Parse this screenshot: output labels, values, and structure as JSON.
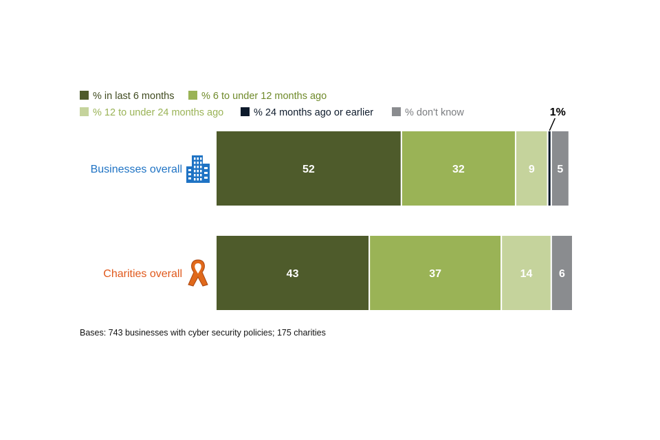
{
  "chart_data": {
    "type": "bar",
    "orientation": "horizontal",
    "stacked": true,
    "title": "",
    "xlabel": "",
    "ylabel": "",
    "xlim": [
      0,
      100
    ],
    "grid": false,
    "legend_position": "top",
    "categories": [
      "Businesses overall",
      "Charities overall"
    ],
    "category_colors": [
      "#1f73c4",
      "#e0581b"
    ],
    "category_icons": [
      "office-building-icon",
      "charity-ribbon-icon"
    ],
    "series": [
      {
        "name": "% in last 6 months",
        "color": "#4e5b2b",
        "legend_text_color": "#3f4a1f",
        "label_color": "#ffffff",
        "values": [
          52,
          43
        ]
      },
      {
        "name": "% 6 to under 12 months ago",
        "color": "#9ab356",
        "legend_text_color": "#6f8a2a",
        "label_color": "#ffffff",
        "values": [
          32,
          37
        ]
      },
      {
        "name": "% 12 to under 24 months ago",
        "color": "#c5d39c",
        "legend_text_color": "#9ab356",
        "label_color": "#ffffff",
        "values": [
          9,
          14
        ]
      },
      {
        "name": "% 24 months ago or earlier",
        "color": "#0d1a2b",
        "legend_text_color": "#0d1a2b",
        "label_color": "#ffffff",
        "values": [
          1,
          0
        ]
      },
      {
        "name": "% don't know",
        "color": "#8a8c8f",
        "legend_text_color": "#7b7d80",
        "label_color": "#ffffff",
        "values": [
          5,
          6
        ]
      }
    ],
    "data_labels": [
      [
        "52",
        "32",
        "9",
        "",
        "5"
      ],
      [
        "43",
        "37",
        "14",
        "",
        "6"
      ]
    ],
    "annotations": [
      {
        "text": "1%",
        "category": "Businesses overall",
        "series": "% 24 months ago or earlier"
      }
    ],
    "footnote": "Bases: 743 businesses with cyber security policies; 175 charities"
  }
}
